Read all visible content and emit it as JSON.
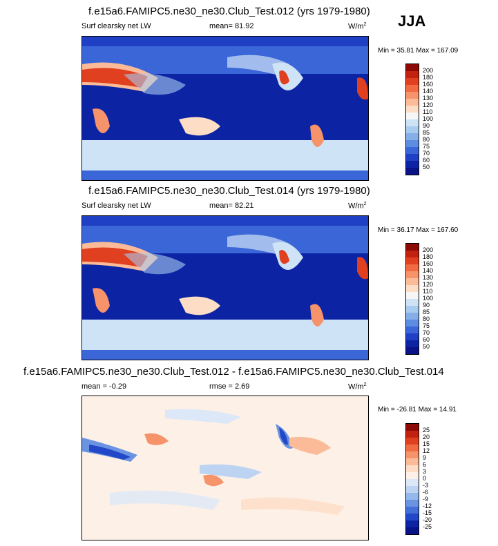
{
  "season": "JJA",
  "panels": [
    {
      "title": "f.e15a6.FAMIPC5.ne30_ne30.Club_Test.012 (yrs 1979-1980)",
      "var_label": "Surf clearsky net LW",
      "stat_label": "mean=  81.92",
      "units": "W/m",
      "units_exp": "2",
      "minmax": "Min = 35.81 Max = 167.09",
      "levels": [
        "200",
        "180",
        "160",
        "140",
        "130",
        "120",
        "110",
        "100",
        "90",
        "85",
        "80",
        "75",
        "70",
        "60",
        "50"
      ],
      "colors": [
        "#8c0a06",
        "#c22310",
        "#e04020",
        "#f06a42",
        "#f6936a",
        "#fbbb98",
        "#fdddc6",
        "#f6f6f6",
        "#cfe3f6",
        "#aacbf0",
        "#86afe8",
        "#5e8ce0",
        "#3a66d8",
        "#1f40c4",
        "#0c24a4",
        "#0a1288"
      ]
    },
    {
      "title": "f.e15a6.FAMIPC5.ne30_ne30.Club_Test.014 (yrs 1979-1980)",
      "var_label": "Surf clearsky net LW",
      "stat_label": "mean=  82.21",
      "units": "W/m",
      "units_exp": "2",
      "minmax": "Min = 36.17 Max = 167.60",
      "levels": [
        "200",
        "180",
        "160",
        "140",
        "130",
        "120",
        "110",
        "100",
        "90",
        "85",
        "80",
        "75",
        "70",
        "60",
        "50"
      ],
      "colors": [
        "#8c0a06",
        "#c22310",
        "#e04020",
        "#f06a42",
        "#f6936a",
        "#fbbb98",
        "#fdddc6",
        "#f6f6f6",
        "#cfe3f6",
        "#aacbf0",
        "#86afe8",
        "#5e8ce0",
        "#3a66d8",
        "#1f40c4",
        "#0c24a4",
        "#0a1288"
      ]
    },
    {
      "title": "f.e15a6.FAMIPC5.ne30_ne30.Club_Test.012 - f.e15a6.FAMIPC5.ne30_ne30.Club_Test.014",
      "var_label": "mean =  -0.29",
      "stat_label": "rmse =   2.69",
      "units": "W/m",
      "units_exp": "2",
      "minmax": "Min = -26.81 Max = 14.91",
      "levels": [
        "25",
        "20",
        "15",
        "12",
        "9",
        "6",
        "3",
        "0",
        "-3",
        "-6",
        "-9",
        "-12",
        "-15",
        "-20",
        "-25"
      ],
      "colors": [
        "#8c0a06",
        "#c22310",
        "#e04020",
        "#f06a42",
        "#f6936a",
        "#fbbb98",
        "#fdddc6",
        "#fdf0e6",
        "#dce8f8",
        "#bcd4f2",
        "#94b8ec",
        "#6a94e2",
        "#4270d8",
        "#2248c8",
        "#0c24a4",
        "#0a1288"
      ]
    }
  ]
}
